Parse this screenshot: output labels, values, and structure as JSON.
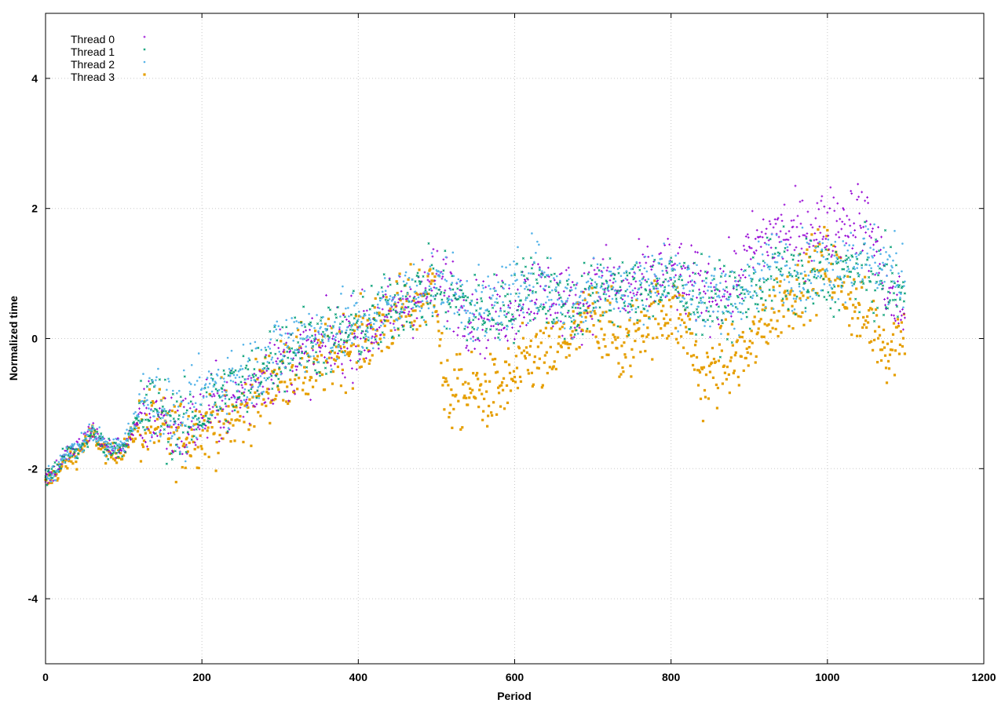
{
  "chart_data": {
    "type": "scatter",
    "title": "",
    "xlabel": "Period",
    "ylabel": "Normalized time",
    "xlim": [
      0,
      1200
    ],
    "ylim": [
      -5,
      5
    ],
    "xticks": [
      0,
      200,
      400,
      600,
      800,
      1000,
      1200
    ],
    "yticks": [
      -4,
      -2,
      0,
      2,
      4
    ],
    "xtick_labels": [
      "0",
      "200",
      "400",
      "600",
      "800",
      "1000",
      "1200"
    ],
    "ytick_labels": [
      "-4",
      "-2",
      "0",
      "2",
      "4"
    ],
    "grid": true,
    "legend_position": "top-left",
    "series": [
      {
        "name": "Thread 0",
        "color": "#9400d3",
        "marker": "plus",
        "trend": [
          [
            0,
            -2.15
          ],
          [
            10,
            -2.05
          ],
          [
            20,
            -1.9
          ],
          [
            30,
            -1.75
          ],
          [
            40,
            -1.7
          ],
          [
            60,
            -1.4
          ],
          [
            80,
            -1.7
          ],
          [
            100,
            -1.65
          ],
          [
            120,
            -1.3
          ],
          [
            140,
            -1.1
          ],
          [
            160,
            -1.35
          ],
          [
            180,
            -1.4
          ],
          [
            200,
            -1.2
          ],
          [
            220,
            -1.05
          ],
          [
            240,
            -0.95
          ],
          [
            260,
            -0.85
          ],
          [
            280,
            -0.5
          ],
          [
            300,
            -0.4
          ],
          [
            320,
            -0.3
          ],
          [
            340,
            -0.2
          ],
          [
            360,
            -0.15
          ],
          [
            380,
            0.0
          ],
          [
            400,
            0.05
          ],
          [
            420,
            0.15
          ],
          [
            440,
            0.35
          ],
          [
            460,
            0.55
          ],
          [
            480,
            0.7
          ],
          [
            500,
            0.85
          ],
          [
            520,
            0.75
          ],
          [
            540,
            0.4
          ],
          [
            560,
            0.3
          ],
          [
            580,
            0.4
          ],
          [
            600,
            0.5
          ],
          [
            620,
            0.75
          ],
          [
            640,
            0.7
          ],
          [
            660,
            0.6
          ],
          [
            680,
            0.5
          ],
          [
            700,
            0.75
          ],
          [
            720,
            0.9
          ],
          [
            740,
            0.65
          ],
          [
            760,
            0.85
          ],
          [
            780,
            0.95
          ],
          [
            800,
            1.0
          ],
          [
            820,
            0.85
          ],
          [
            840,
            0.75
          ],
          [
            860,
            0.7
          ],
          [
            880,
            0.8
          ],
          [
            900,
            1.3
          ],
          [
            920,
            1.5
          ],
          [
            940,
            1.65
          ],
          [
            960,
            1.55
          ],
          [
            980,
            1.7
          ],
          [
            1000,
            1.75
          ],
          [
            1020,
            1.8
          ],
          [
            1040,
            1.9
          ],
          [
            1060,
            1.5
          ],
          [
            1080,
            0.6
          ],
          [
            1095,
            0.4
          ]
        ]
      },
      {
        "name": "Thread 1",
        "color": "#009e73",
        "marker": "cross",
        "trend": [
          [
            0,
            -2.15
          ],
          [
            10,
            -2.05
          ],
          [
            20,
            -1.9
          ],
          [
            30,
            -1.75
          ],
          [
            40,
            -1.75
          ],
          [
            60,
            -1.45
          ],
          [
            80,
            -1.7
          ],
          [
            100,
            -1.65
          ],
          [
            120,
            -1.2
          ],
          [
            140,
            -1.0
          ],
          [
            160,
            -1.3
          ],
          [
            180,
            -1.35
          ],
          [
            200,
            -1.1
          ],
          [
            220,
            -0.9
          ],
          [
            240,
            -0.8
          ],
          [
            260,
            -0.7
          ],
          [
            280,
            -0.4
          ],
          [
            300,
            -0.25
          ],
          [
            320,
            -0.1
          ],
          [
            340,
            -0.05
          ],
          [
            360,
            -0.05
          ],
          [
            380,
            0.05
          ],
          [
            400,
            0.15
          ],
          [
            420,
            0.25
          ],
          [
            440,
            0.45
          ],
          [
            460,
            0.6
          ],
          [
            480,
            0.7
          ],
          [
            500,
            0.75
          ],
          [
            520,
            0.65
          ],
          [
            540,
            0.45
          ],
          [
            560,
            0.35
          ],
          [
            580,
            0.45
          ],
          [
            600,
            0.55
          ],
          [
            620,
            0.85
          ],
          [
            640,
            0.75
          ],
          [
            660,
            0.55
          ],
          [
            680,
            0.45
          ],
          [
            700,
            0.65
          ],
          [
            720,
            0.85
          ],
          [
            740,
            0.6
          ],
          [
            760,
            0.75
          ],
          [
            780,
            0.8
          ],
          [
            800,
            0.85
          ],
          [
            820,
            0.7
          ],
          [
            840,
            0.6
          ],
          [
            860,
            0.55
          ],
          [
            880,
            0.6
          ],
          [
            900,
            0.7
          ],
          [
            920,
            0.9
          ],
          [
            940,
            1.05
          ],
          [
            960,
            0.95
          ],
          [
            980,
            0.9
          ],
          [
            1000,
            0.95
          ],
          [
            1020,
            1.0
          ],
          [
            1040,
            1.05
          ],
          [
            1060,
            0.9
          ],
          [
            1080,
            0.8
          ],
          [
            1095,
            0.7
          ]
        ]
      },
      {
        "name": "Thread 2",
        "color": "#56b4e9",
        "marker": "star",
        "trend": [
          [
            0,
            -2.15
          ],
          [
            10,
            -2.05
          ],
          [
            20,
            -1.9
          ],
          [
            30,
            -1.75
          ],
          [
            40,
            -1.7
          ],
          [
            60,
            -1.4
          ],
          [
            80,
            -1.7
          ],
          [
            100,
            -1.6
          ],
          [
            120,
            -1.1
          ],
          [
            140,
            -0.85
          ],
          [
            160,
            -1.2
          ],
          [
            180,
            -1.25
          ],
          [
            200,
            -0.9
          ],
          [
            220,
            -0.7
          ],
          [
            240,
            -0.6
          ],
          [
            260,
            -0.55
          ],
          [
            280,
            -0.3
          ],
          [
            300,
            -0.15
          ],
          [
            320,
            0.0
          ],
          [
            340,
            0.05
          ],
          [
            360,
            0.05
          ],
          [
            380,
            0.15
          ],
          [
            400,
            0.2
          ],
          [
            420,
            0.3
          ],
          [
            440,
            0.5
          ],
          [
            460,
            0.65
          ],
          [
            480,
            0.75
          ],
          [
            500,
            0.8
          ],
          [
            520,
            0.7
          ],
          [
            540,
            0.55
          ],
          [
            560,
            0.4
          ],
          [
            580,
            0.55
          ],
          [
            600,
            0.7
          ],
          [
            620,
            1.0
          ],
          [
            640,
            0.85
          ],
          [
            660,
            0.6
          ],
          [
            680,
            0.5
          ],
          [
            700,
            0.75
          ],
          [
            720,
            0.95
          ],
          [
            740,
            0.7
          ],
          [
            760,
            0.8
          ],
          [
            780,
            0.9
          ],
          [
            800,
            0.95
          ],
          [
            820,
            0.8
          ],
          [
            840,
            0.65
          ],
          [
            860,
            0.6
          ],
          [
            880,
            0.65
          ],
          [
            900,
            0.75
          ],
          [
            920,
            1.0
          ],
          [
            940,
            1.2
          ],
          [
            960,
            1.05
          ],
          [
            980,
            1.0
          ],
          [
            1000,
            1.1
          ],
          [
            1020,
            1.2
          ],
          [
            1040,
            1.3
          ],
          [
            1060,
            1.2
          ],
          [
            1080,
            1.05
          ],
          [
            1095,
            0.9
          ]
        ]
      },
      {
        "name": "Thread 3",
        "color": "#e69f00",
        "marker": "square",
        "trend": [
          [
            0,
            -2.25
          ],
          [
            10,
            -2.1
          ],
          [
            20,
            -2.0
          ],
          [
            30,
            -1.85
          ],
          [
            40,
            -1.8
          ],
          [
            60,
            -1.45
          ],
          [
            80,
            -1.8
          ],
          [
            100,
            -1.7
          ],
          [
            120,
            -1.35
          ],
          [
            140,
            -1.3
          ],
          [
            160,
            -1.5
          ],
          [
            180,
            -1.5
          ],
          [
            200,
            -1.35
          ],
          [
            220,
            -1.3
          ],
          [
            240,
            -1.25
          ],
          [
            260,
            -1.05
          ],
          [
            280,
            -0.75
          ],
          [
            300,
            -0.6
          ],
          [
            320,
            -0.4
          ],
          [
            340,
            -0.5
          ],
          [
            360,
            -0.3
          ],
          [
            380,
            -0.15
          ],
          [
            400,
            -0.05
          ],
          [
            420,
            0.1
          ],
          [
            440,
            0.3
          ],
          [
            460,
            0.45
          ],
          [
            480,
            0.6
          ],
          [
            500,
            0.85
          ],
          [
            510,
            -0.9
          ],
          [
            540,
            -0.8
          ],
          [
            560,
            -0.85
          ],
          [
            580,
            -0.8
          ],
          [
            600,
            -0.6
          ],
          [
            620,
            -0.3
          ],
          [
            640,
            -0.35
          ],
          [
            660,
            -0.1
          ],
          [
            680,
            0.1
          ],
          [
            700,
            0.35
          ],
          [
            720,
            0.2
          ],
          [
            740,
            -0.3
          ],
          [
            760,
            0.25
          ],
          [
            780,
            0.35
          ],
          [
            800,
            0.45
          ],
          [
            820,
            0.2
          ],
          [
            840,
            -0.7
          ],
          [
            860,
            -0.4
          ],
          [
            880,
            -0.3
          ],
          [
            900,
            -0.2
          ],
          [
            920,
            0.3
          ],
          [
            940,
            0.55
          ],
          [
            960,
            0.75
          ],
          [
            980,
            1.0
          ],
          [
            1000,
            1.2
          ],
          [
            1020,
            0.8
          ],
          [
            1040,
            0.4
          ],
          [
            1060,
            0.2
          ],
          [
            1080,
            -0.2
          ],
          [
            1095,
            0.2
          ]
        ]
      }
    ]
  }
}
